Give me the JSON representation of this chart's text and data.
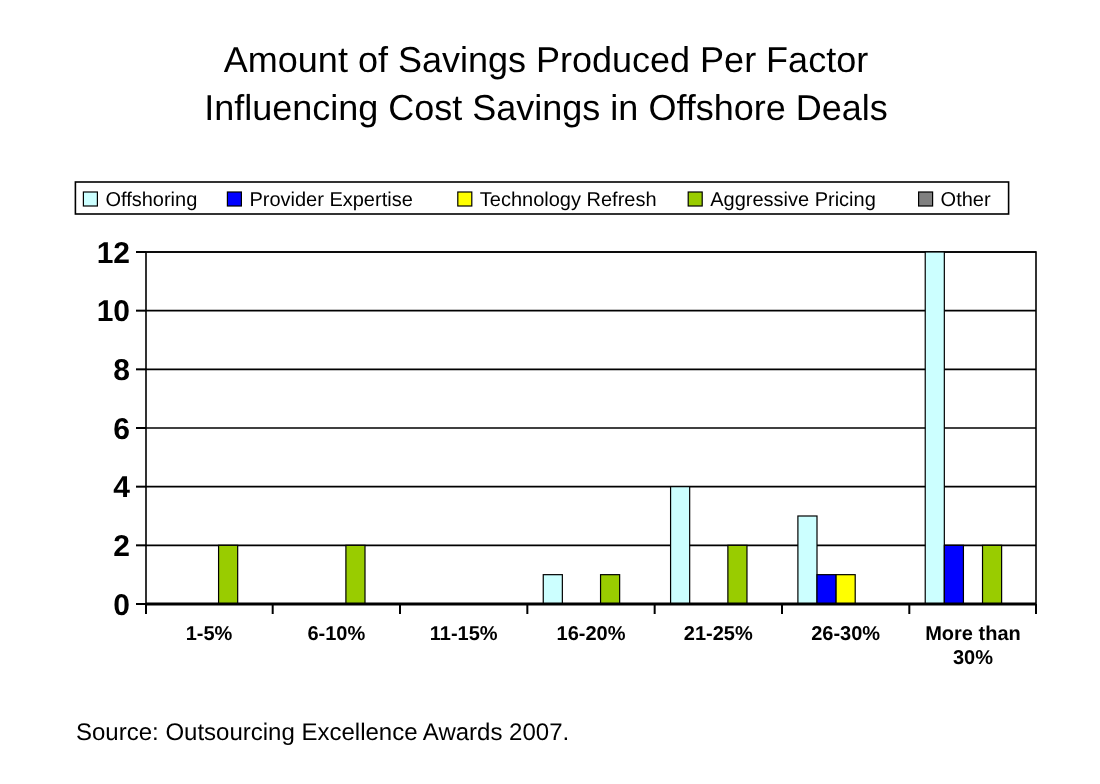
{
  "chart_data": {
    "type": "bar",
    "title": "Amount of Savings Produced Per Factor Influencing Cost Savings in Offshore Deals",
    "categories": [
      "1-5%",
      "6-10%",
      "11-15%",
      "16-20%",
      "21-25%",
      "26-30%",
      "More than 30%"
    ],
    "series": [
      {
        "name": "Offshoring",
        "color": "#ccffff",
        "values": [
          0,
          0,
          0,
          1,
          4,
          3,
          12
        ]
      },
      {
        "name": "Provider Expertise",
        "color": "#0000ff",
        "values": [
          0,
          0,
          0,
          0,
          0,
          1,
          2
        ]
      },
      {
        "name": "Technology Refresh",
        "color": "#ffff00",
        "values": [
          0,
          0,
          0,
          0,
          0,
          1,
          0
        ]
      },
      {
        "name": "Aggressive Pricing",
        "color": "#99cc00",
        "values": [
          2,
          2,
          0,
          1,
          2,
          0,
          2
        ]
      },
      {
        "name": "Other",
        "color": "#808080",
        "values": [
          0,
          0,
          0,
          0,
          0,
          0,
          0
        ]
      }
    ],
    "ylim": [
      0,
      12
    ],
    "yticks": [
      0,
      2,
      4,
      6,
      8,
      10,
      12
    ],
    "grid": "y",
    "legend": "top",
    "annotations": [
      "Source: Outsourcing Excellence Awards 2007."
    ]
  }
}
